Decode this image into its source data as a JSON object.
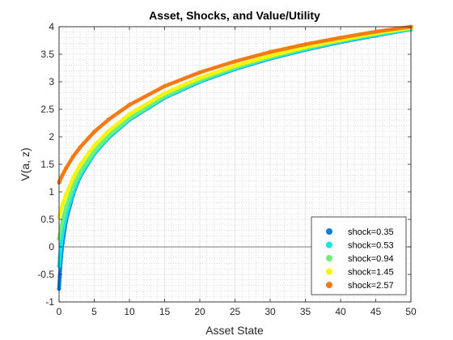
{
  "chart_data": {
    "type": "scatter",
    "title": "Asset, Shocks, and Value/Utility",
    "xlabel": "Asset State",
    "ylabel": "V(a, z)",
    "xlim": [
      0,
      50
    ],
    "ylim": [
      -1,
      4
    ],
    "x_ticks": [
      "0",
      "5",
      "10",
      "15",
      "20",
      "25",
      "30",
      "35",
      "40",
      "45",
      "50"
    ],
    "y_ticks": [
      "-1",
      "-0.5",
      "0",
      "0.5",
      "1",
      "1.5",
      "2",
      "2.5",
      "3",
      "3.5",
      "4"
    ],
    "grid": "on (minor dotted)",
    "reference_line_y": 0,
    "legend_position": "bottom-right",
    "series": [
      {
        "name": "shock=0.35",
        "color": "#0d7ee8",
        "z": 0.35,
        "x": [
          0,
          0.1,
          0.3,
          0.5,
          1,
          2,
          3,
          5,
          7,
          10,
          15,
          20,
          25,
          30,
          35,
          40,
          45,
          50
        ],
        "y": [
          -0.76,
          -0.54,
          -0.18,
          0.07,
          0.48,
          0.96,
          1.28,
          1.69,
          1.98,
          2.31,
          2.71,
          3.0,
          3.23,
          3.42,
          3.58,
          3.72,
          3.84,
          3.95
        ]
      },
      {
        "name": "shock=0.53",
        "color": "#14e6e6",
        "z": 0.53,
        "x": [
          0,
          0.1,
          0.3,
          0.5,
          1,
          2,
          3,
          5,
          7,
          10,
          15,
          20,
          25,
          30,
          35,
          40,
          45,
          50
        ],
        "y": [
          -0.35,
          -0.2,
          0.05,
          0.24,
          0.57,
          1.0,
          1.3,
          1.7,
          1.99,
          2.32,
          2.72,
          3.01,
          3.24,
          3.43,
          3.59,
          3.73,
          3.85,
          3.95
        ]
      },
      {
        "name": "shock=0.94",
        "color": "#6ef07a",
        "z": 0.94,
        "x": [
          0,
          0.1,
          0.3,
          0.5,
          1,
          2,
          3,
          5,
          7,
          10,
          15,
          20,
          25,
          30,
          35,
          40,
          45,
          50
        ],
        "y": [
          0.15,
          0.22,
          0.36,
          0.48,
          0.73,
          1.09,
          1.36,
          1.74,
          2.02,
          2.34,
          2.74,
          3.03,
          3.26,
          3.45,
          3.61,
          3.75,
          3.87,
          3.97
        ]
      },
      {
        "name": "shock=1.45",
        "color": "#f5f50a",
        "z": 1.45,
        "x": [
          0,
          0.1,
          0.3,
          0.5,
          1,
          2,
          3,
          5,
          7,
          10,
          15,
          20,
          25,
          30,
          35,
          40,
          45,
          50
        ],
        "y": [
          0.55,
          0.6,
          0.69,
          0.77,
          0.95,
          1.25,
          1.49,
          1.84,
          2.1,
          2.41,
          2.79,
          3.07,
          3.29,
          3.47,
          3.63,
          3.76,
          3.88,
          3.98
        ]
      },
      {
        "name": "shock=2.57",
        "color": "#f57a14",
        "z": 2.57,
        "x": [
          0,
          0.1,
          0.3,
          0.5,
          1,
          2,
          3,
          5,
          7,
          10,
          15,
          20,
          25,
          30,
          35,
          40,
          45,
          50
        ],
        "y": [
          1.17,
          1.2,
          1.26,
          1.31,
          1.43,
          1.64,
          1.81,
          2.09,
          2.31,
          2.58,
          2.92,
          3.17,
          3.37,
          3.54,
          3.68,
          3.8,
          3.91,
          4.0
        ]
      }
    ]
  }
}
